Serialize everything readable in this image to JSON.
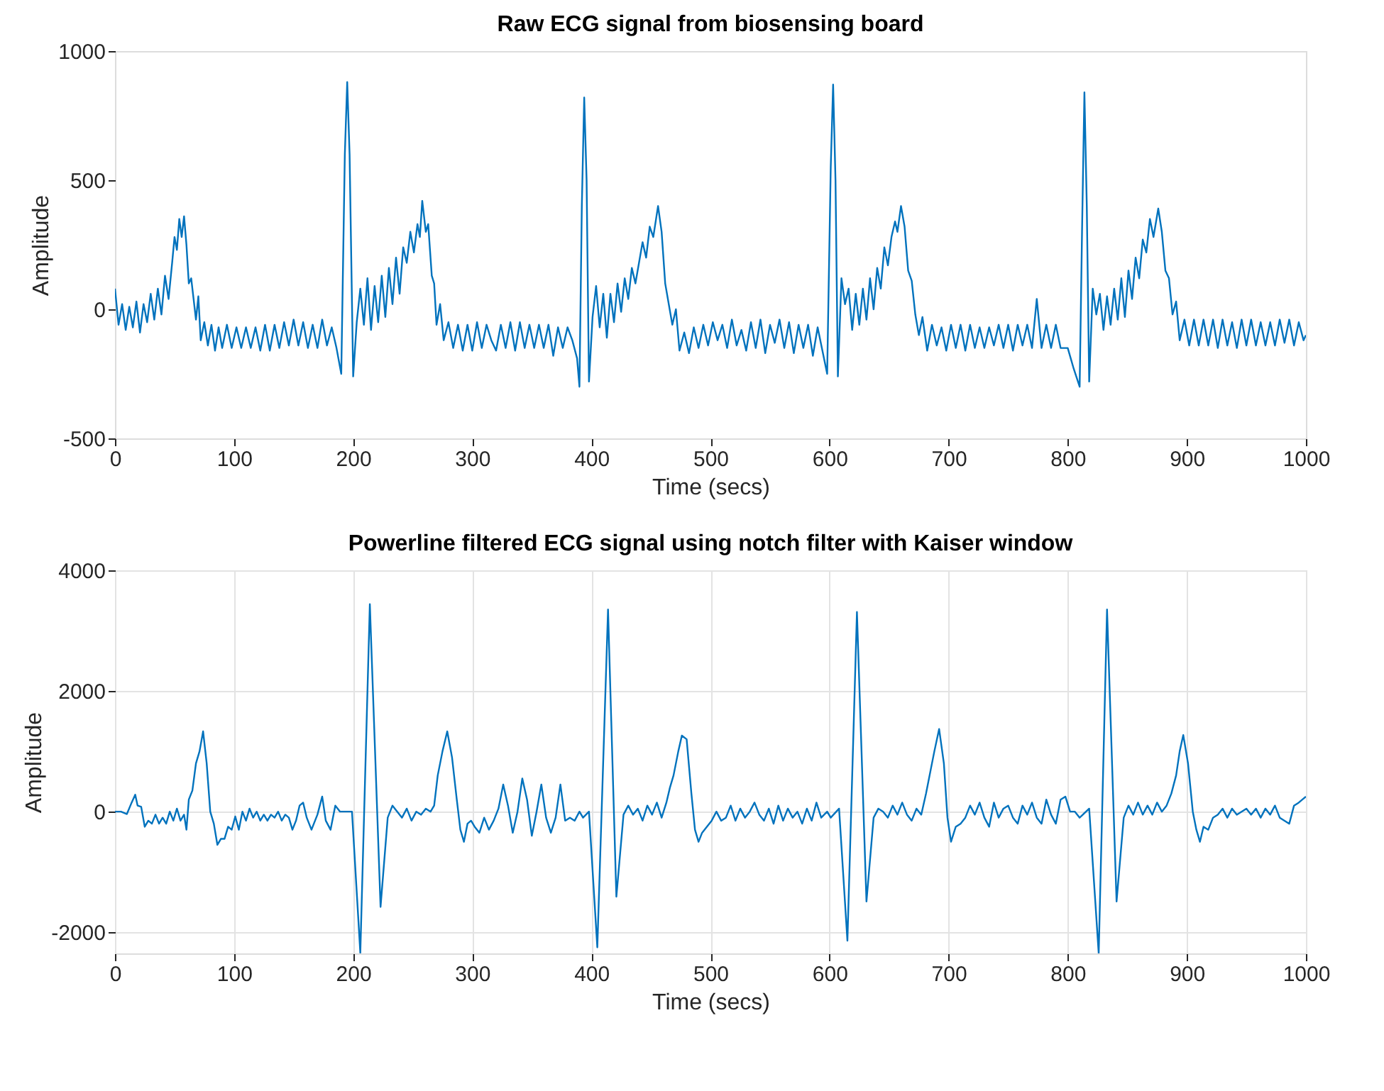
{
  "chart_data": [
    {
      "type": "line",
      "title": "Raw ECG signal from biosensing board",
      "xlabel": "Time (secs)",
      "ylabel": "Amplitude",
      "xlim": [
        0,
        1000
      ],
      "ylim": [
        -500,
        1000
      ],
      "xticks": [
        0,
        100,
        200,
        300,
        400,
        500,
        600,
        700,
        800,
        900,
        1000
      ],
      "yticks": [
        -500,
        0,
        500,
        1000
      ],
      "grid": false,
      "x": [
        0,
        3,
        6,
        9,
        12,
        15,
        18,
        21,
        24,
        27,
        30,
        33,
        36,
        39,
        42,
        45,
        48,
        50,
        52,
        54,
        56,
        58,
        60,
        62,
        64,
        66,
        68,
        70,
        72,
        75,
        78,
        81,
        84,
        87,
        90,
        94,
        98,
        102,
        106,
        110,
        114,
        118,
        122,
        126,
        130,
        134,
        138,
        142,
        146,
        150,
        154,
        158,
        162,
        166,
        170,
        174,
        178,
        182,
        186,
        190,
        193,
        195,
        197,
        200,
        203,
        206,
        209,
        212,
        215,
        218,
        221,
        224,
        227,
        230,
        233,
        236,
        239,
        242,
        245,
        248,
        251,
        254,
        256,
        258,
        261,
        263,
        266,
        268,
        270,
        273,
        276,
        280,
        284,
        288,
        292,
        296,
        300,
        304,
        308,
        312,
        316,
        320,
        324,
        328,
        332,
        336,
        340,
        344,
        348,
        352,
        356,
        360,
        364,
        368,
        372,
        376,
        380,
        384,
        388,
        390,
        392,
        394,
        396,
        398,
        401,
        404,
        407,
        410,
        413,
        416,
        419,
        422,
        425,
        428,
        431,
        434,
        437,
        440,
        443,
        446,
        449,
        452,
        456,
        459,
        462,
        465,
        468,
        471,
        474,
        478,
        482,
        486,
        490,
        494,
        498,
        502,
        506,
        510,
        514,
        518,
        522,
        526,
        530,
        534,
        538,
        542,
        546,
        550,
        554,
        558,
        562,
        566,
        570,
        574,
        578,
        582,
        586,
        590,
        594,
        598,
        601,
        603,
        605,
        607,
        610,
        613,
        616,
        619,
        622,
        625,
        628,
        631,
        634,
        637,
        640,
        643,
        646,
        649,
        652,
        655,
        657,
        660,
        663,
        666,
        669,
        672,
        675,
        678,
        682,
        686,
        690,
        694,
        698,
        702,
        706,
        710,
        714,
        718,
        722,
        726,
        730,
        734,
        738,
        742,
        746,
        750,
        754,
        758,
        762,
        766,
        770,
        774,
        778,
        782,
        786,
        790,
        794,
        800,
        805,
        810,
        812,
        814,
        816,
        818,
        821,
        824,
        827,
        830,
        833,
        836,
        839,
        842,
        845,
        848,
        851,
        854,
        857,
        860,
        863,
        866,
        869,
        872,
        876,
        879,
        882,
        885,
        888,
        891,
        894,
        898,
        902,
        906,
        910,
        914,
        918,
        922,
        926,
        930,
        934,
        938,
        942,
        946,
        950,
        954,
        958,
        962,
        966,
        970,
        974,
        978,
        982,
        986,
        990,
        994,
        998,
        1000
      ],
      "series": [
        {
          "color": "#0072bd",
          "values": [
            80,
            -60,
            20,
            -80,
            10,
            -70,
            30,
            -90,
            20,
            -50,
            60,
            -40,
            80,
            -20,
            130,
            40,
            180,
            280,
            230,
            350,
            280,
            360,
            250,
            100,
            120,
            40,
            -40,
            50,
            -120,
            -50,
            -140,
            -60,
            -160,
            -70,
            -150,
            -60,
            -150,
            -70,
            -150,
            -70,
            -150,
            -70,
            -160,
            -60,
            -160,
            -60,
            -150,
            -50,
            -140,
            -40,
            -140,
            -50,
            -150,
            -60,
            -150,
            -40,
            -140,
            -70,
            -150,
            -250,
            600,
            880,
            600,
            -260,
            -50,
            80,
            -60,
            120,
            -80,
            90,
            -50,
            130,
            -30,
            160,
            20,
            200,
            60,
            240,
            180,
            300,
            220,
            330,
            280,
            420,
            300,
            330,
            130,
            100,
            -60,
            20,
            -120,
            -50,
            -150,
            -60,
            -160,
            -60,
            -160,
            -50,
            -150,
            -60,
            -120,
            -160,
            -60,
            -150,
            -50,
            -160,
            -50,
            -150,
            -60,
            -150,
            -60,
            -150,
            -60,
            -180,
            -70,
            -150,
            -70,
            -120,
            -190,
            -300,
            400,
            820,
            500,
            -280,
            -30,
            90,
            -70,
            60,
            -110,
            60,
            -50,
            100,
            -10,
            120,
            40,
            160,
            100,
            180,
            260,
            200,
            320,
            280,
            400,
            300,
            100,
            20,
            -60,
            0,
            -160,
            -90,
            -170,
            -70,
            -150,
            -60,
            -140,
            -50,
            -120,
            -60,
            -150,
            -40,
            -140,
            -80,
            -160,
            -50,
            -150,
            -40,
            -170,
            -60,
            -130,
            -40,
            -150,
            -50,
            -170,
            -60,
            -150,
            -60,
            -180,
            -70,
            -160,
            -250,
            550,
            870,
            500,
            -260,
            120,
            20,
            80,
            -80,
            60,
            -60,
            80,
            -40,
            120,
            0,
            160,
            80,
            240,
            170,
            280,
            340,
            300,
            400,
            320,
            150,
            110,
            -20,
            -100,
            -30,
            -160,
            -60,
            -140,
            -70,
            -160,
            -60,
            -150,
            -60,
            -160,
            -60,
            -150,
            -70,
            -150,
            -70,
            -140,
            -60,
            -150,
            -60,
            -160,
            -60,
            -140,
            -60,
            -150,
            40,
            -150,
            -60,
            -150,
            -60,
            -150,
            -150,
            -230,
            -300,
            300,
            840,
            400,
            -280,
            80,
            -20,
            60,
            -80,
            50,
            -60,
            80,
            -40,
            120,
            -30,
            150,
            40,
            200,
            120,
            270,
            220,
            350,
            280,
            390,
            300,
            150,
            120,
            -20,
            30,
            -120,
            -40,
            -140,
            -40,
            -140,
            -40,
            -140,
            -40,
            -150,
            -40,
            -140,
            -50,
            -150,
            -40,
            -140,
            -40,
            -140,
            -50,
            -140,
            -50,
            -140,
            -40,
            -130,
            -40,
            -140,
            -50,
            -120,
            -100
          ]
        }
      ]
    },
    {
      "type": "line",
      "title": "Powerline filtered ECG signal using notch filter with Kaiser window",
      "xlabel": "Time (secs)",
      "ylabel": "Amplitude",
      "xlim": [
        0,
        1000
      ],
      "ylim": [
        -2350,
        4000
      ],
      "xticks": [
        0,
        100,
        200,
        300,
        400,
        500,
        600,
        700,
        800,
        900,
        1000
      ],
      "yticks": [
        -2000,
        0,
        2000,
        4000
      ],
      "grid": true,
      "x": [
        0,
        5,
        10,
        14,
        17,
        19,
        22,
        25,
        28,
        31,
        34,
        37,
        40,
        43,
        46,
        49,
        52,
        55,
        58,
        60,
        62,
        65,
        68,
        71,
        74,
        77,
        80,
        83,
        86,
        89,
        92,
        95,
        98,
        101,
        104,
        107,
        110,
        113,
        116,
        119,
        122,
        125,
        128,
        131,
        134,
        137,
        140,
        143,
        146,
        149,
        152,
        155,
        158,
        161,
        165,
        170,
        174,
        177,
        181,
        185,
        189,
        193,
        199,
        206,
        214,
        223,
        229,
        233,
        237,
        241,
        245,
        249,
        253,
        257,
        261,
        265,
        268,
        271,
        275,
        279,
        283,
        287,
        290,
        293,
        296,
        299,
        302,
        306,
        310,
        314,
        318,
        322,
        326,
        330,
        334,
        338,
        342,
        346,
        350,
        354,
        358,
        362,
        366,
        370,
        374,
        378,
        382,
        386,
        390,
        393,
        398,
        405,
        414,
        421,
        427,
        431,
        435,
        439,
        443,
        447,
        451,
        455,
        459,
        463,
        466,
        469,
        473,
        476,
        480,
        484,
        487,
        490,
        493,
        497,
        501,
        505,
        509,
        513,
        517,
        521,
        525,
        529,
        533,
        537,
        541,
        545,
        549,
        553,
        557,
        561,
        565,
        569,
        573,
        577,
        581,
        585,
        589,
        593,
        598,
        601,
        608,
        615,
        623,
        631,
        637,
        641,
        645,
        649,
        653,
        657,
        661,
        665,
        669,
        673,
        677,
        681,
        685,
        688,
        692,
        696,
        699,
        702,
        706,
        710,
        714,
        718,
        722,
        726,
        730,
        734,
        738,
        742,
        746,
        750,
        754,
        758,
        762,
        766,
        770,
        774,
        778,
        782,
        786,
        790,
        794,
        798,
        802,
        806,
        810,
        818,
        826,
        833,
        841,
        847,
        851,
        855,
        859,
        863,
        867,
        871,
        875,
        879,
        883,
        887,
        891,
        894,
        897,
        901,
        905,
        908,
        911,
        914,
        918,
        922,
        926,
        930,
        934,
        938,
        942,
        946,
        950,
        954,
        958,
        962,
        966,
        970,
        974,
        978,
        982,
        986,
        990,
        994,
        997,
        1000
      ],
      "series": [
        {
          "color": "#0072bd",
          "values": [
            0,
            0,
            -40,
            150,
            280,
            100,
            80,
            -250,
            -150,
            -200,
            -50,
            -200,
            -100,
            -200,
            0,
            -150,
            50,
            -150,
            -50,
            -300,
            200,
            350,
            800,
            1000,
            1330,
            800,
            0,
            -200,
            -550,
            -450,
            -450,
            -250,
            -300,
            -80,
            -300,
            0,
            -150,
            50,
            -100,
            0,
            -150,
            -50,
            -150,
            -50,
            -100,
            0,
            -150,
            -50,
            -100,
            -300,
            -150,
            100,
            150,
            -100,
            -300,
            -50,
            250,
            -150,
            -300,
            100,
            0,
            0,
            0,
            -2340,
            3440,
            -1580,
            -100,
            100,
            0,
            -100,
            50,
            -150,
            0,
            -50,
            50,
            0,
            100,
            600,
            1000,
            1330,
            900,
            200,
            -300,
            -500,
            -200,
            -150,
            -250,
            -350,
            -100,
            -300,
            -150,
            50,
            450,
            100,
            -350,
            0,
            550,
            200,
            -400,
            0,
            450,
            -100,
            -350,
            -100,
            450,
            -150,
            -100,
            -150,
            0,
            -100,
            0,
            -2250,
            3350,
            -1410,
            -50,
            100,
            -50,
            50,
            -150,
            100,
            -50,
            150,
            -100,
            150,
            400,
            600,
            1000,
            1260,
            1200,
            300,
            -300,
            -500,
            -350,
            -250,
            -150,
            0,
            -150,
            -100,
            100,
            -150,
            50,
            -100,
            0,
            150,
            -50,
            -150,
            50,
            -200,
            100,
            -150,
            50,
            -100,
            0,
            -200,
            50,
            -150,
            150,
            -100,
            0,
            -100,
            50,
            -2140,
            3310,
            -1490,
            -100,
            50,
            0,
            -100,
            100,
            -50,
            150,
            -50,
            -150,
            50,
            -50,
            300,
            700,
            1000,
            1370,
            800,
            -100,
            -500,
            -250,
            -200,
            -100,
            100,
            -50,
            150,
            -100,
            -250,
            150,
            -100,
            50,
            100,
            -100,
            -200,
            100,
            -50,
            150,
            -100,
            -200,
            200,
            -50,
            -200,
            200,
            250,
            0,
            0,
            -100,
            50,
            -2350,
            3350,
            -1490,
            -100,
            100,
            -50,
            150,
            -50,
            100,
            -50,
            150,
            0,
            100,
            300,
            600,
            1000,
            1270,
            800,
            0,
            -300,
            -500,
            -250,
            -300,
            -100,
            -50,
            50,
            -100,
            50,
            -50,
            0,
            50,
            -50,
            50,
            -100,
            50,
            -50,
            100,
            -100,
            -150,
            -200,
            100,
            150,
            200,
            250
          ]
        }
      ]
    }
  ]
}
